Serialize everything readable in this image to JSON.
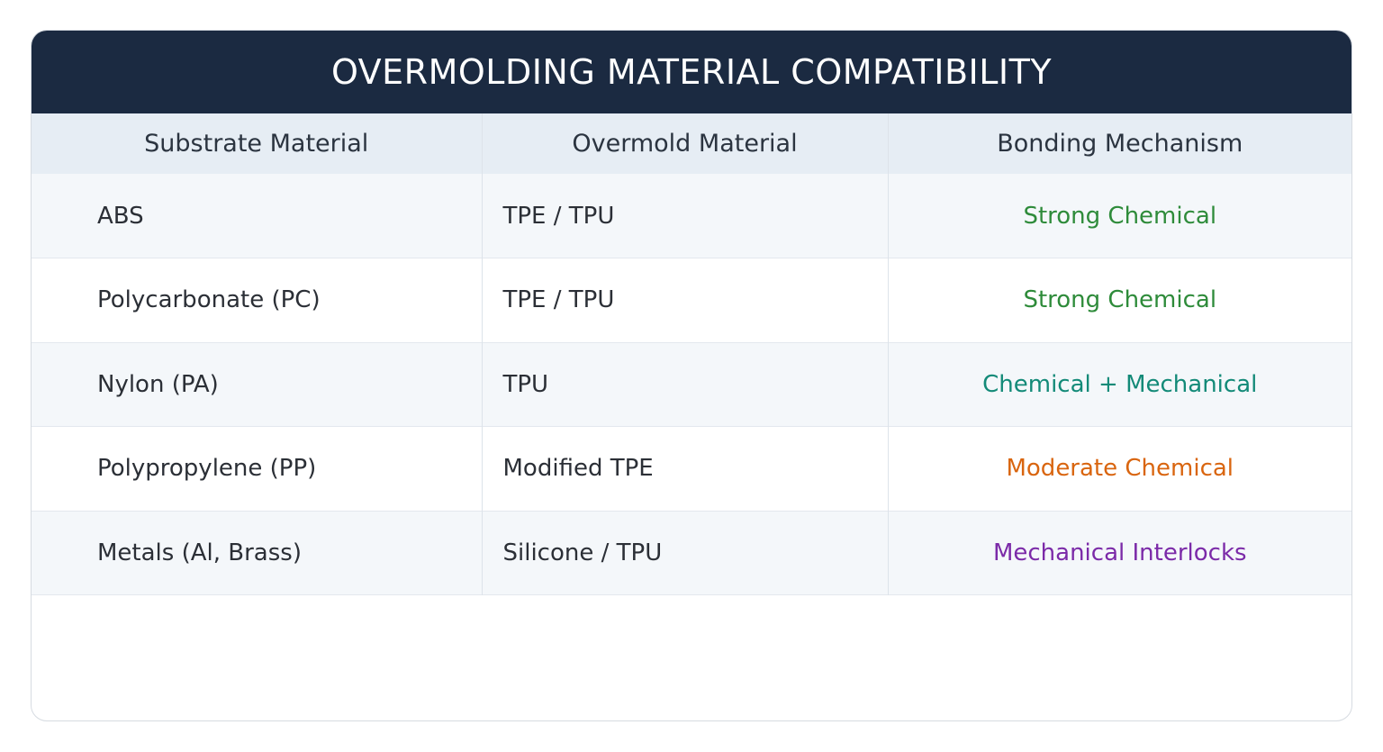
{
  "title": "OVERMOLDING MATERIAL COMPATIBILITY",
  "columns": [
    "Substrate Material",
    "Overmold Material",
    "Bonding Mechanism"
  ],
  "rows": [
    {
      "substrate": "ABS",
      "overmold": "TPE / TPU",
      "bonding": "Strong Chemical",
      "bonding_color": "#2e8b3a"
    },
    {
      "substrate": "Polycarbonate (PC)",
      "overmold": "TPE / TPU",
      "bonding": "Strong Chemical",
      "bonding_color": "#2e8b3a"
    },
    {
      "substrate": "Nylon (PA)",
      "overmold": "TPU",
      "bonding": "Chemical + Mechanical",
      "bonding_color": "#138a78"
    },
    {
      "substrate": "Polypropylene (PP)",
      "overmold": "Modified TPE",
      "bonding": "Moderate Chemical",
      "bonding_color": "#d9650f"
    },
    {
      "substrate": "Metals (Al, Brass)",
      "overmold": "Silicone / TPU",
      "bonding": "Mechanical Interlocks",
      "bonding_color": "#7b2aa8"
    }
  ],
  "colors": {
    "header_bg": "#1b2a41",
    "column_header_bg": "#e6edf4",
    "row_alt_bg": "#f4f7fa"
  }
}
